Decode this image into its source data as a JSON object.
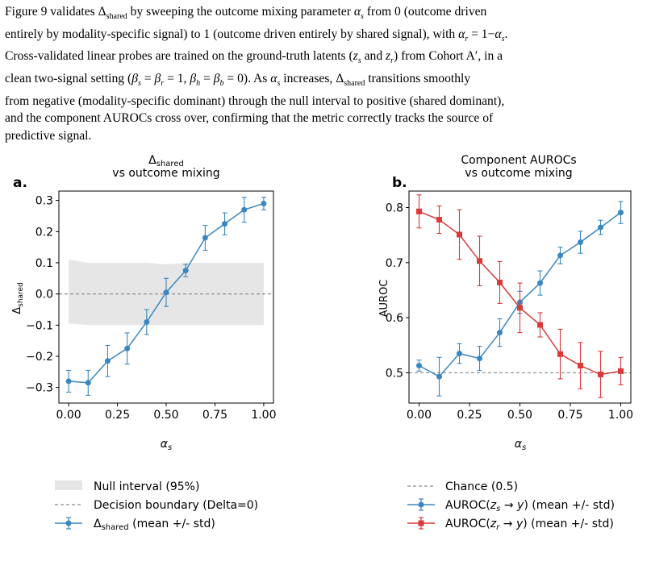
{
  "paragraph": {
    "lines": [
      "Figure 9 validates Δ​shared by sweeping the outcome mixing parameter αₛ from 0 (outcome driven",
      "entirely by modality-specific signal) to 1 (outcome driven entirely by shared signal), with αᵣ = 1−αₛ.",
      "Cross-validated linear probes are trained on the ground-truth latents (zₛ and zᵣ) from Cohort A′, in a",
      "clean two-signal setting (βₛ = βᵣ = 1, βₕ = βᵦ = 0). As αₛ increases, Δshared transitions smoothly",
      "from negative (modality-specific dominant) through the null interval to positive (shared dominant),",
      "and the component AUROCs cross over, confirming that the metric correctly tracks the source of",
      "predictive signal."
    ]
  },
  "colors": {
    "blue": "#3a87c0",
    "red": "#d93a3a",
    "null_band": "#e6e6e6",
    "dashed": "#8c8c8c"
  },
  "chart_data": [
    {
      "panel": "a.",
      "type": "line",
      "title": [
        "Δshared",
        "vs outcome mixing"
      ],
      "xlabel": "αs",
      "ylabel": "Δshared",
      "xlim": [
        -0.05,
        1.05
      ],
      "ylim": [
        -0.35,
        0.33
      ],
      "xticks": [
        0.0,
        0.25,
        0.5,
        0.75,
        1.0
      ],
      "xtick_labels": [
        "0.00",
        "0.25",
        "0.50",
        "0.75",
        "1.00"
      ],
      "yticks": [
        -0.3,
        -0.2,
        -0.1,
        0.0,
        0.1,
        0.2,
        0.3
      ],
      "ytick_labels": [
        "−0.3",
        "−0.2",
        "−0.1",
        "0.0",
        "0.1",
        "0.2",
        "0.3"
      ],
      "null_interval": {
        "x": [
          0.0,
          0.1,
          0.2,
          0.3,
          0.4,
          0.5,
          0.6,
          0.7,
          0.8,
          0.9,
          1.0
        ],
        "upper": [
          0.11,
          0.1,
          0.1,
          0.1,
          0.1,
          0.095,
          0.1,
          0.1,
          0.1,
          0.1,
          0.1
        ],
        "lower": [
          -0.095,
          -0.1,
          -0.1,
          -0.1,
          -0.1,
          -0.1,
          -0.1,
          -0.1,
          -0.1,
          -0.1,
          -0.1
        ]
      },
      "reference_line": 0.0,
      "series": [
        {
          "name": "Δshared (mean +/- std)",
          "marker": "circle",
          "x": [
            0.0,
            0.1,
            0.2,
            0.3,
            0.4,
            0.5,
            0.6,
            0.7,
            0.8,
            0.9,
            1.0
          ],
          "y": [
            -0.28,
            -0.285,
            -0.215,
            -0.175,
            -0.09,
            0.005,
            0.075,
            0.18,
            0.225,
            0.27,
            0.29
          ],
          "err": [
            0.035,
            0.04,
            0.05,
            0.05,
            0.04,
            0.045,
            0.02,
            0.04,
            0.035,
            0.04,
            0.02
          ]
        }
      ],
      "legend": [
        {
          "kind": "band",
          "label": "Null interval (95%)"
        },
        {
          "kind": "dashed",
          "label": "Decision boundary (Delta=0)"
        },
        {
          "kind": "errorbar-blue",
          "label": "Δshared (mean +/- std)"
        }
      ]
    },
    {
      "panel": "b.",
      "type": "line",
      "title": [
        "Component AUROCs",
        "vs outcome mixing"
      ],
      "xlabel": "αs",
      "ylabel": "AUROC",
      "xlim": [
        -0.05,
        1.05
      ],
      "ylim": [
        0.445,
        0.83
      ],
      "xticks": [
        0.0,
        0.25,
        0.5,
        0.75,
        1.0
      ],
      "xtick_labels": [
        "0.00",
        "0.25",
        "0.50",
        "0.75",
        "1.00"
      ],
      "yticks": [
        0.5,
        0.6,
        0.7,
        0.8
      ],
      "ytick_labels": [
        "0.5",
        "0.6",
        "0.7",
        "0.8"
      ],
      "reference_line": 0.5,
      "series": [
        {
          "name": "AUROC(zs→y) (mean +/- std)",
          "color": "blue",
          "marker": "circle",
          "x": [
            0.0,
            0.1,
            0.2,
            0.3,
            0.4,
            0.5,
            0.6,
            0.7,
            0.8,
            0.9,
            1.0
          ],
          "y": [
            0.513,
            0.493,
            0.535,
            0.526,
            0.573,
            0.628,
            0.663,
            0.713,
            0.737,
            0.764,
            0.791
          ],
          "err": [
            0.01,
            0.035,
            0.018,
            0.022,
            0.025,
            0.02,
            0.022,
            0.015,
            0.02,
            0.013,
            0.02
          ]
        },
        {
          "name": "AUROC(zr→y) (mean +/- std)",
          "color": "red",
          "marker": "square",
          "x": [
            0.0,
            0.1,
            0.2,
            0.3,
            0.4,
            0.5,
            0.6,
            0.7,
            0.8,
            0.9,
            1.0
          ],
          "y": [
            0.793,
            0.778,
            0.751,
            0.703,
            0.664,
            0.618,
            0.587,
            0.534,
            0.513,
            0.497,
            0.503
          ],
          "err": [
            0.03,
            0.025,
            0.045,
            0.045,
            0.038,
            0.045,
            0.022,
            0.045,
            0.042,
            0.042,
            0.025
          ]
        }
      ],
      "legend": [
        {
          "kind": "dashed",
          "label": "Chance (0.5)"
        },
        {
          "kind": "errorbar-blue",
          "label": "AUROC(zs→y) (mean +/- std)"
        },
        {
          "kind": "errorbar-red",
          "label": "AUROC(zr→y) (mean +/- std)"
        }
      ]
    }
  ]
}
